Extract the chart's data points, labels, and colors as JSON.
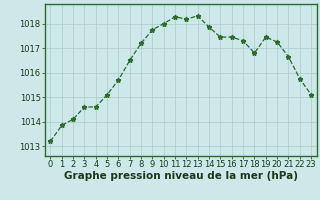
{
  "x": [
    0,
    1,
    2,
    3,
    4,
    5,
    6,
    7,
    8,
    9,
    10,
    11,
    12,
    13,
    14,
    15,
    16,
    17,
    18,
    19,
    20,
    21,
    22,
    23
  ],
  "y": [
    1013.2,
    1013.85,
    1014.1,
    1014.6,
    1014.6,
    1015.1,
    1015.7,
    1016.5,
    1017.2,
    1017.75,
    1018.0,
    1018.28,
    1018.18,
    1018.32,
    1017.85,
    1017.45,
    1017.45,
    1017.3,
    1016.8,
    1017.45,
    1017.25,
    1016.65,
    1015.75,
    1015.1
  ],
  "line_color": "#2d6a2d",
  "marker": "*",
  "marker_size": 3.5,
  "bg_color": "#cce8e8",
  "grid_color": "#aacccc",
  "xlabel": "Graphe pression niveau de la mer (hPa)",
  "xlabel_fontsize": 7.5,
  "xlabel_fontweight": "bold",
  "xlabel_color": "#1a3a1a",
  "yticks": [
    1013,
    1014,
    1015,
    1016,
    1017,
    1018
  ],
  "xticks": [
    0,
    1,
    2,
    3,
    4,
    5,
    6,
    7,
    8,
    9,
    10,
    11,
    12,
    13,
    14,
    15,
    16,
    17,
    18,
    19,
    20,
    21,
    22,
    23
  ],
  "ylim": [
    1012.6,
    1018.8
  ],
  "xlim": [
    -0.5,
    23.5
  ],
  "tick_fontsize": 6.0,
  "tick_color": "#1a3a1a",
  "spine_color": "#2d6a2d",
  "linewidth": 0.9
}
